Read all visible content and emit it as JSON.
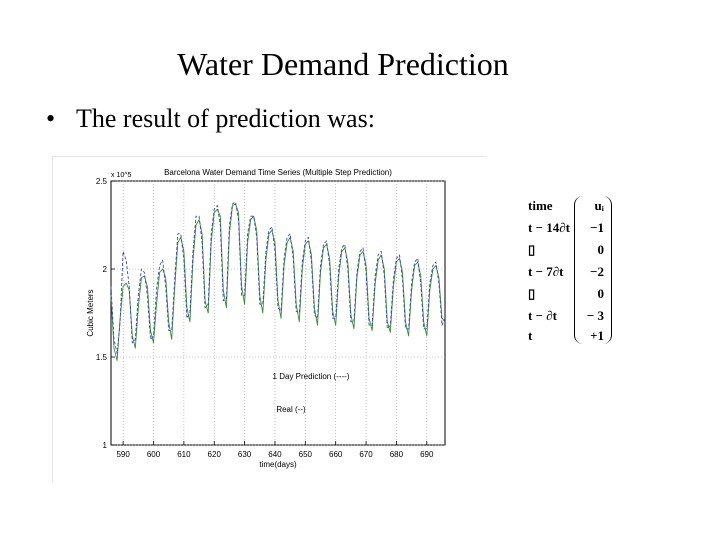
{
  "slide": {
    "title": "Water Demand Prediction",
    "bullet_symbol": "•",
    "bullet_text": "The result of prediction was:"
  },
  "chart_data": {
    "type": "line",
    "title": "Barcelona Water Demand Time Series (Multiple Step Prediction)",
    "xlabel": "time(days)",
    "ylabel": "Cubic Meters",
    "y_scale_note": "x 10^5",
    "xlim": [
      586,
      696
    ],
    "ylim": [
      1,
      2.5
    ],
    "x_ticks": [
      590,
      600,
      610,
      620,
      630,
      640,
      650,
      660,
      670,
      680,
      690
    ],
    "y_ticks": [
      1,
      1.5,
      2,
      2.5
    ],
    "grid": true,
    "annotations": [
      "1 Day Prediction (----)",
      "Real (--)"
    ],
    "colors": {
      "real": "#3a8a3a",
      "prediction": "#3a4aa8"
    },
    "series": [
      {
        "name": "Real",
        "x": [
          586,
          587,
          588,
          589,
          590,
          591,
          592,
          593,
          594,
          595,
          596,
          597,
          598,
          599,
          600,
          601,
          602,
          603,
          604,
          605,
          606,
          607,
          608,
          609,
          610,
          611,
          612,
          613,
          614,
          615,
          616,
          617,
          618,
          619,
          620,
          621,
          622,
          623,
          624,
          625,
          626,
          627,
          628,
          629,
          630,
          631,
          632,
          633,
          634,
          635,
          636,
          637,
          638,
          639,
          640,
          641,
          642,
          643,
          644,
          645,
          646,
          647,
          648,
          649,
          650,
          651,
          652,
          653,
          654,
          655,
          656,
          657,
          658,
          659,
          660,
          661,
          662,
          663,
          664,
          665,
          666,
          667,
          668,
          669,
          670,
          671,
          672,
          673,
          674,
          675,
          676,
          677,
          678,
          679,
          680,
          681,
          682,
          683,
          684,
          685,
          686,
          687,
          688,
          689,
          690,
          691,
          692,
          693,
          694,
          695,
          696
        ],
        "values": [
          1.85,
          1.55,
          1.48,
          1.72,
          1.9,
          1.92,
          1.88,
          1.62,
          1.55,
          1.78,
          1.95,
          1.96,
          1.9,
          1.65,
          1.58,
          1.8,
          1.98,
          2.0,
          1.95,
          1.7,
          1.6,
          1.9,
          2.15,
          2.18,
          2.1,
          1.78,
          1.7,
          2.05,
          2.25,
          2.28,
          2.2,
          1.82,
          1.75,
          2.15,
          2.32,
          2.34,
          2.3,
          1.88,
          1.78,
          2.2,
          2.36,
          2.37,
          2.32,
          1.9,
          1.8,
          2.15,
          2.28,
          2.3,
          2.22,
          1.85,
          1.75,
          2.05,
          2.2,
          2.22,
          2.15,
          1.82,
          1.72,
          2.02,
          2.15,
          2.18,
          2.1,
          1.8,
          1.7,
          2.0,
          2.14,
          2.16,
          2.08,
          1.78,
          1.68,
          1.98,
          2.12,
          2.14,
          2.06,
          1.76,
          1.68,
          1.96,
          2.1,
          2.12,
          2.04,
          1.74,
          1.66,
          1.95,
          2.08,
          2.1,
          2.02,
          1.72,
          1.65,
          1.92,
          2.05,
          2.08,
          2.0,
          1.7,
          1.64,
          1.9,
          2.04,
          2.06,
          1.98,
          1.7,
          1.62,
          1.88,
          2.02,
          2.04,
          1.96,
          1.7,
          1.62,
          1.88,
          2.0,
          2.02,
          1.95,
          1.72,
          1.7
        ]
      },
      {
        "name": "1 Day Prediction",
        "x": [
          586,
          587,
          588,
          589,
          590,
          591,
          592,
          593,
          594,
          595,
          596,
          597,
          598,
          599,
          600,
          601,
          602,
          603,
          604,
          605,
          606,
          607,
          608,
          609,
          610,
          611,
          612,
          613,
          614,
          615,
          616,
          617,
          618,
          619,
          620,
          621,
          622,
          623,
          624,
          625,
          626,
          627,
          628,
          629,
          630,
          631,
          632,
          633,
          634,
          635,
          636,
          637,
          638,
          639,
          640,
          641,
          642,
          643,
          644,
          645,
          646,
          647,
          648,
          649,
          650,
          651,
          652,
          653,
          654,
          655,
          656,
          657,
          658,
          659,
          660,
          661,
          662,
          663,
          664,
          665,
          666,
          667,
          668,
          669,
          670,
          671,
          672,
          673,
          674,
          675,
          676,
          677,
          678,
          679,
          680,
          681,
          682,
          683,
          684,
          685,
          686,
          687,
          688,
          689,
          690,
          691,
          692,
          693,
          694,
          695,
          696
        ],
        "values": [
          1.9,
          1.6,
          1.52,
          1.7,
          2.1,
          2.05,
          1.9,
          1.58,
          1.6,
          1.85,
          2.0,
          1.98,
          1.85,
          1.6,
          1.62,
          1.88,
          2.02,
          2.05,
          1.9,
          1.65,
          1.65,
          1.95,
          2.2,
          2.2,
          2.05,
          1.72,
          1.75,
          2.1,
          2.3,
          2.3,
          2.15,
          1.78,
          1.8,
          2.2,
          2.34,
          2.36,
          2.25,
          1.82,
          1.83,
          2.25,
          2.37,
          2.38,
          2.28,
          1.85,
          1.85,
          2.2,
          2.3,
          2.3,
          2.18,
          1.8,
          1.8,
          2.1,
          2.22,
          2.24,
          2.1,
          1.78,
          1.76,
          2.06,
          2.18,
          2.2,
          2.06,
          1.76,
          1.75,
          2.04,
          2.16,
          2.18,
          2.04,
          1.74,
          1.72,
          2.02,
          2.14,
          2.16,
          2.02,
          1.72,
          1.72,
          2.0,
          2.12,
          2.14,
          2.0,
          1.7,
          1.7,
          1.98,
          2.1,
          2.12,
          1.98,
          1.68,
          1.68,
          1.96,
          2.08,
          2.1,
          1.96,
          1.66,
          1.68,
          1.94,
          2.06,
          2.08,
          1.94,
          1.66,
          1.66,
          1.92,
          2.04,
          2.06,
          1.92,
          1.66,
          1.66,
          1.92,
          2.02,
          2.04,
          1.92,
          1.68,
          1.72
        ]
      }
    ]
  },
  "formula": {
    "header_time": "time",
    "header_u": "uᵢ",
    "rows": [
      {
        "time": "t − 14∂t",
        "u": "−1"
      },
      {
        "time": "▯",
        "u": "0"
      },
      {
        "time": "t − 7∂t",
        "u": "−2"
      },
      {
        "time": "▯",
        "u": "0"
      },
      {
        "time": "t − ∂t",
        "u": "− 3"
      },
      {
        "time": "t",
        "u": "+1"
      }
    ]
  }
}
